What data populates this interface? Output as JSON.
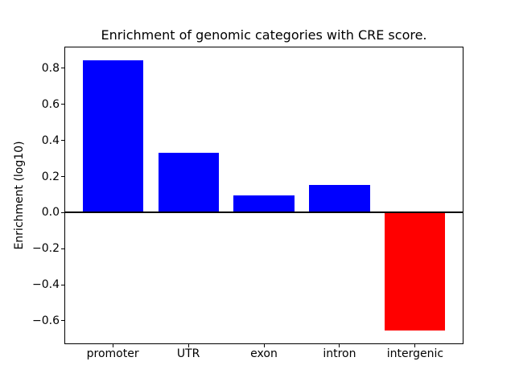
{
  "figure": {
    "background": "#ffffff"
  },
  "chart_data": {
    "type": "bar",
    "title": "Enrichment of genomic categories with CRE score.",
    "xlabel": "",
    "ylabel": "Enrichment (log10)",
    "categories": [
      "promoter",
      "UTR",
      "exon",
      "intron",
      "intergenic"
    ],
    "values": [
      0.845,
      0.33,
      0.095,
      0.155,
      -0.655
    ],
    "bar_colors": [
      "#0000ff",
      "#0000ff",
      "#0000ff",
      "#0000ff",
      "#ff0000"
    ],
    "positive_color": "#0000ff",
    "negative_color": "#ff0000",
    "bar_width": 0.8,
    "y_ticks": [
      0.8,
      0.6,
      0.4,
      0.2,
      0.0,
      -0.2,
      -0.4,
      -0.6
    ],
    "y_tick_labels": [
      "0.8",
      "0.6",
      "0.4",
      "0.2",
      "0.0",
      "−0.2",
      "−0.4",
      "−0.6"
    ],
    "ylim": [
      -0.73,
      0.92
    ],
    "xlim": [
      -0.64,
      4.64
    ],
    "grid": false,
    "zero_line": true,
    "axis_color": "#000000"
  }
}
